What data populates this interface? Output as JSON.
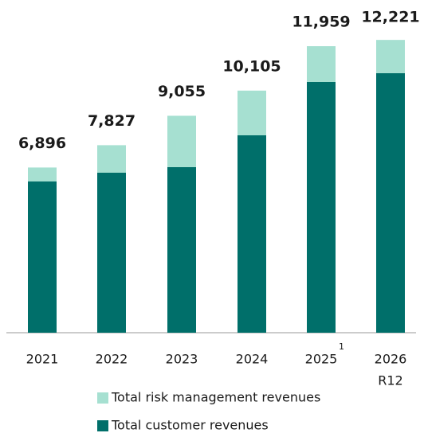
{
  "chart_data": {
    "type": "stacked_bar",
    "categories": [
      "2021",
      "2022",
      "2023",
      "2024",
      "2025",
      "2026"
    ],
    "superscripts": [
      null,
      null,
      null,
      null,
      "1",
      null
    ],
    "sublabels": [
      null,
      null,
      null,
      null,
      null,
      "R12"
    ],
    "series": [
      {
        "name": "Total customer revenues",
        "color": "#006f6a",
        "values": [
          6312,
          6678,
          6910,
          8239,
          10465,
          10831
        ]
      },
      {
        "name": "Total risk management revenues",
        "color": "#a6e0d1",
        "values": [
          584,
          1149,
          2145,
          1866,
          1494,
          1390
        ]
      }
    ],
    "totals": [
      6896,
      7827,
      9055,
      10105,
      11959,
      12221
    ],
    "total_labels": [
      "6,896",
      "7,827",
      "9,055",
      "10,105",
      "11,959",
      "12,221"
    ]
  }
}
